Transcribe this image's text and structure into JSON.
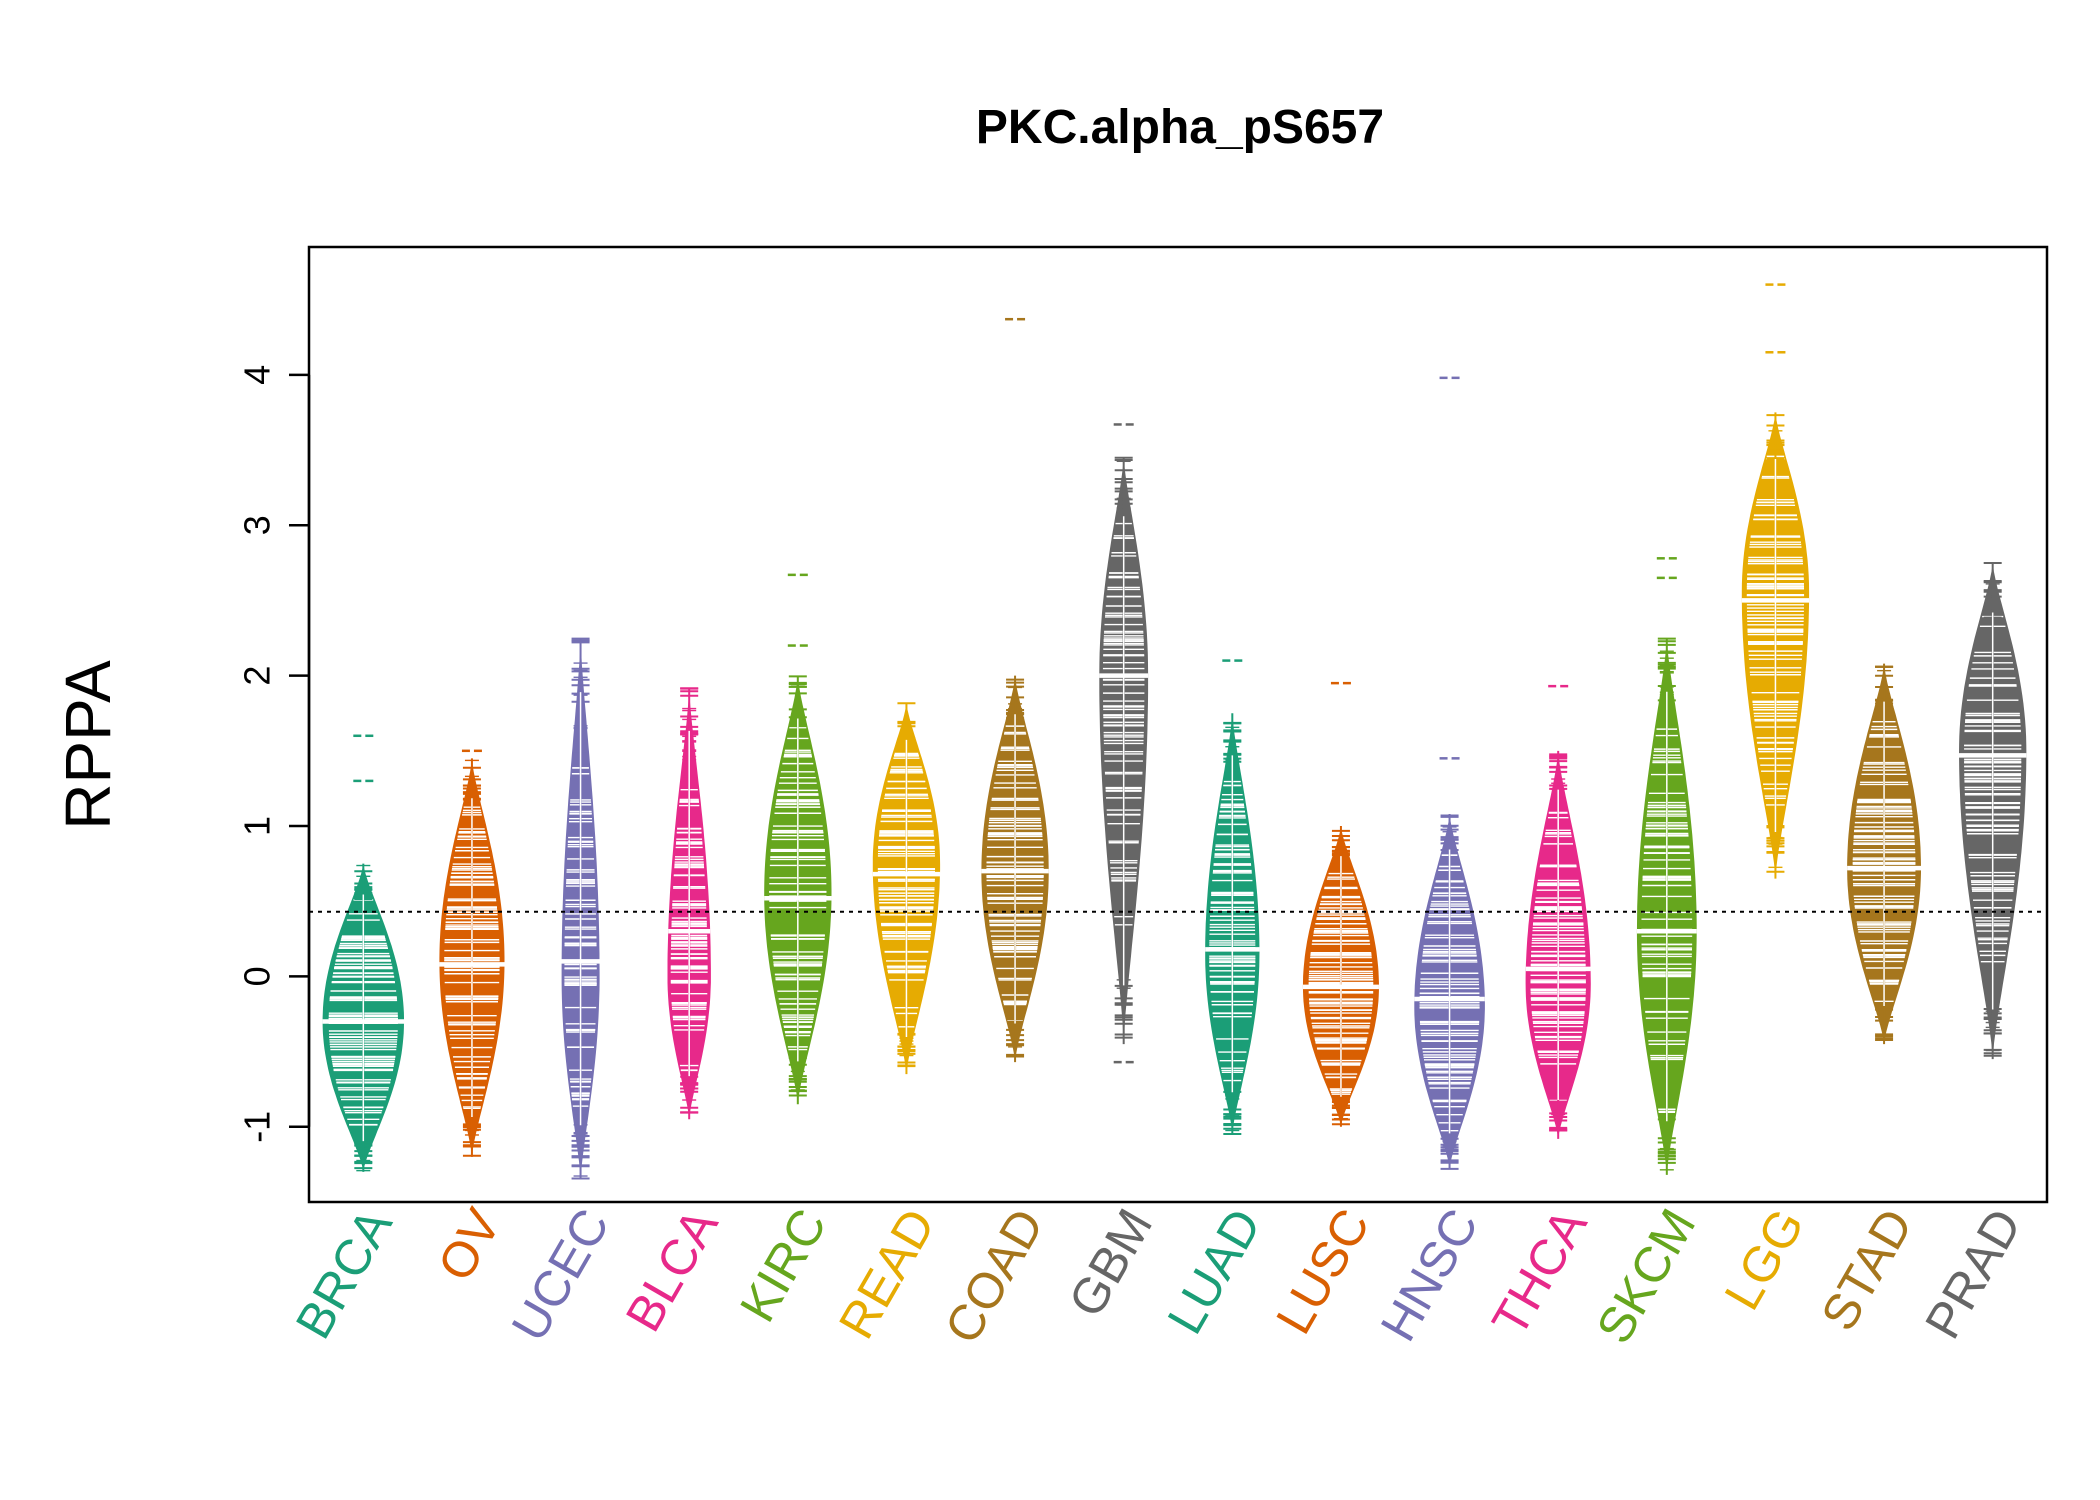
{
  "chart_data": {
    "type": "beanplot",
    "title": "PKC.alpha_pS657",
    "ylabel": "RPPA",
    "xlabel": "",
    "ylim": [
      -1.5,
      4.85
    ],
    "yticks": [
      -1,
      0,
      1,
      2,
      3,
      4
    ],
    "ytick_labels": [
      "-1",
      "0",
      "1",
      "2",
      "3",
      "4"
    ],
    "reference_line": 0.43,
    "grid": false,
    "legend": "none",
    "categories": [
      "BRCA",
      "OV",
      "UCEC",
      "BLCA",
      "KIRC",
      "READ",
      "COAD",
      "GBM",
      "LUAD",
      "LUSC",
      "HNSC",
      "THCA",
      "SKCM",
      "LGG",
      "STAD",
      "PRAD"
    ],
    "colors": [
      "#1B9E77",
      "#D95F02",
      "#7570B3",
      "#E7298A",
      "#66A61E",
      "#E6AB02",
      "#A6761D",
      "#666666",
      "#1B9E77",
      "#D95F02",
      "#7570B3",
      "#E7298A",
      "#66A61E",
      "#E6AB02",
      "#A6761D",
      "#666666"
    ],
    "series": [
      {
        "category": "BRCA",
        "min": -1.3,
        "max": 0.75,
        "median": -0.3,
        "peak": -0.3,
        "width": 0.75,
        "outliers": [
          1.6,
          1.3
        ]
      },
      {
        "category": "OV",
        "min": -1.2,
        "max": 1.45,
        "median": 0.08,
        "peak": 0.1,
        "width": 0.6,
        "outliers": [
          1.5
        ]
      },
      {
        "category": "UCEC",
        "min": -1.35,
        "max": 2.25,
        "median": 0.1,
        "peak": 0.0,
        "width": 0.35,
        "outliers": []
      },
      {
        "category": "BLCA",
        "min": -0.95,
        "max": 1.92,
        "median": 0.3,
        "peak": 0.0,
        "width": 0.4,
        "outliers": []
      },
      {
        "category": "KIRC",
        "min": -0.85,
        "max": 2.0,
        "median": 0.52,
        "peak": 0.55,
        "width": 0.62,
        "outliers": [
          2.67,
          2.2
        ]
      },
      {
        "category": "READ",
        "min": -0.65,
        "max": 1.82,
        "median": 0.68,
        "peak": 0.75,
        "width": 0.62,
        "outliers": []
      },
      {
        "category": "COAD",
        "min": -0.57,
        "max": 2.0,
        "median": 0.7,
        "peak": 0.7,
        "width": 0.62,
        "outliers": [
          4.37
        ]
      },
      {
        "category": "GBM",
        "min": -0.45,
        "max": 3.45,
        "median": 2.0,
        "peak": 2.0,
        "width": 0.45,
        "outliers": [
          -0.57,
          3.67
        ]
      },
      {
        "category": "LUAD",
        "min": -1.05,
        "max": 1.75,
        "median": 0.18,
        "peak": 0.15,
        "width": 0.5,
        "outliers": [
          2.1
        ]
      },
      {
        "category": "LUSC",
        "min": -1.0,
        "max": 1.0,
        "median": -0.07,
        "peak": -0.07,
        "width": 0.7,
        "outliers": [
          1.95
        ]
      },
      {
        "category": "HNSC",
        "min": -1.28,
        "max": 1.08,
        "median": -0.15,
        "peak": -0.2,
        "width": 0.65,
        "outliers": [
          1.45,
          3.98
        ]
      },
      {
        "category": "THCA",
        "min": -1.08,
        "max": 1.5,
        "median": 0.05,
        "peak": -0.05,
        "width": 0.6,
        "outliers": [
          1.93
        ]
      },
      {
        "category": "SKCM",
        "min": -1.32,
        "max": 2.25,
        "median": 0.3,
        "peak": 0.3,
        "width": 0.55,
        "outliers": [
          2.65,
          2.78
        ]
      },
      {
        "category": "LGG",
        "min": 0.65,
        "max": 3.75,
        "median": 2.5,
        "peak": 2.55,
        "width": 0.62,
        "outliers": [
          4.6,
          4.15
        ]
      },
      {
        "category": "STAD",
        "min": -0.45,
        "max": 2.08,
        "median": 0.72,
        "peak": 0.72,
        "width": 0.68,
        "outliers": []
      },
      {
        "category": "PRAD",
        "min": -0.55,
        "max": 2.75,
        "median": 1.47,
        "peak": 1.5,
        "width": 0.62,
        "outliers": []
      }
    ]
  }
}
